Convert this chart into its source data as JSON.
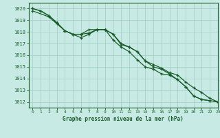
{
  "xlabel": "Graphe pression niveau de la mer (hPa)",
  "xlim": [
    -0.5,
    23
  ],
  "ylim": [
    1011.5,
    1020.5
  ],
  "yticks": [
    1012,
    1013,
    1014,
    1015,
    1016,
    1017,
    1018,
    1019,
    1020
  ],
  "xticks": [
    0,
    1,
    2,
    3,
    4,
    5,
    6,
    7,
    8,
    9,
    10,
    11,
    12,
    13,
    14,
    15,
    16,
    17,
    18,
    19,
    20,
    21,
    22,
    23
  ],
  "background_color": "#c8eae4",
  "grid_color": "#a0ccc4",
  "line_color": "#1a5c2a",
  "line1_x": [
    0,
    1,
    2,
    3,
    4,
    5,
    6,
    7,
    8,
    9,
    10,
    11,
    12,
    13,
    14,
    15,
    16,
    17,
    18,
    19,
    20,
    21,
    22,
    23
  ],
  "line1_y": [
    1020.0,
    1019.8,
    1019.4,
    1018.8,
    1018.1,
    1017.8,
    1017.5,
    1017.8,
    1018.2,
    1018.2,
    1017.8,
    1017.0,
    1016.7,
    1016.3,
    1015.5,
    1015.0,
    1014.8,
    1014.4,
    1013.9,
    1013.3,
    1012.5,
    1012.2,
    1012.1,
    1012.0
  ],
  "line2_x": [
    0,
    1,
    2,
    3,
    4,
    5,
    6,
    7,
    8,
    9,
    10,
    11,
    12,
    13,
    14,
    15,
    16,
    17,
    18,
    19,
    20,
    21,
    22,
    23
  ],
  "line2_y": [
    1020.0,
    1019.8,
    1019.4,
    1018.8,
    1018.1,
    1017.8,
    1017.8,
    1018.2,
    1018.2,
    1018.2,
    1017.3,
    1016.7,
    1016.3,
    1015.6,
    1015.0,
    1014.8,
    1014.4,
    1014.3,
    1013.9,
    1013.3,
    1012.5,
    1012.2,
    1012.1,
    1012.0
  ],
  "line3_x": [
    0,
    2,
    3,
    4,
    5,
    6,
    7,
    8,
    9,
    10,
    11,
    12,
    13,
    14,
    15,
    16,
    17,
    18,
    19,
    20,
    21,
    22,
    23
  ],
  "line3_y": [
    1019.8,
    1019.3,
    1018.7,
    1018.1,
    1017.8,
    1017.8,
    1017.9,
    1018.2,
    1018.2,
    1017.8,
    1016.9,
    1016.7,
    1016.3,
    1015.5,
    1015.2,
    1014.9,
    1014.5,
    1014.3,
    1013.7,
    1013.2,
    1012.8,
    1012.3,
    1012.0
  ]
}
